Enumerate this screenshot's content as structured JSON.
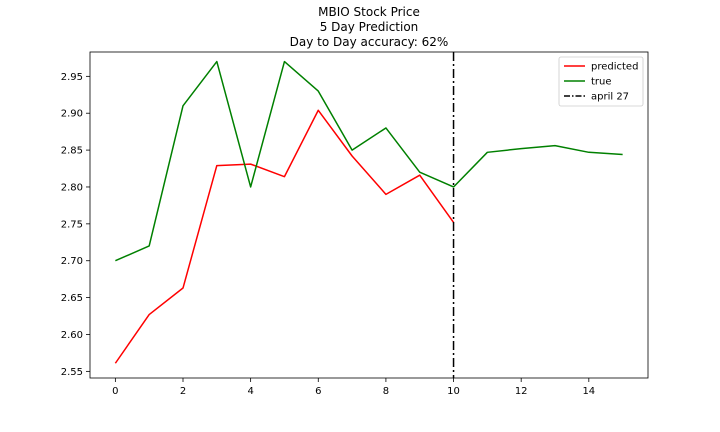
{
  "chart_data": {
    "type": "line",
    "title_lines": [
      "MBIO Stock Price",
      "5 Day Prediction",
      "Day to Day accuracy: 62%"
    ],
    "xlabel": "",
    "ylabel": "",
    "xlim": [
      -0.75,
      15.75
    ],
    "ylim": [
      2.541,
      2.983
    ],
    "x_ticks": [
      0,
      2,
      4,
      6,
      8,
      10,
      12,
      14
    ],
    "y_ticks": [
      2.55,
      2.6,
      2.65,
      2.7,
      2.75,
      2.8,
      2.85,
      2.9,
      2.95
    ],
    "x_tick_labels": [
      "0",
      "2",
      "4",
      "6",
      "8",
      "10",
      "12",
      "14"
    ],
    "y_tick_labels": [
      "2.55",
      "2.60",
      "2.65",
      "2.70",
      "2.75",
      "2.80",
      "2.85",
      "2.90",
      "2.95"
    ],
    "grid": false,
    "legend_position": "top-right",
    "series": [
      {
        "name": "predicted",
        "color": "#ff0000",
        "style": "solid",
        "x": [
          0,
          1,
          2,
          3,
          4,
          5,
          6,
          7,
          8,
          9,
          10
        ],
        "values": [
          2.561,
          2.627,
          2.663,
          2.829,
          2.831,
          2.814,
          2.904,
          2.842,
          2.79,
          2.816,
          2.752
        ]
      },
      {
        "name": "true",
        "color": "#008000",
        "style": "solid",
        "x": [
          0,
          1,
          2,
          3,
          4,
          5,
          6,
          7,
          8,
          9,
          10,
          11,
          12,
          13,
          14,
          15
        ],
        "values": [
          2.7,
          2.72,
          2.91,
          2.97,
          2.8,
          2.97,
          2.93,
          2.85,
          2.88,
          2.82,
          2.8,
          2.847,
          2.852,
          2.856,
          2.847,
          2.844
        ]
      }
    ],
    "vline": {
      "name": "april 27",
      "x": 10,
      "color": "#000000",
      "style": "dashdot"
    }
  }
}
